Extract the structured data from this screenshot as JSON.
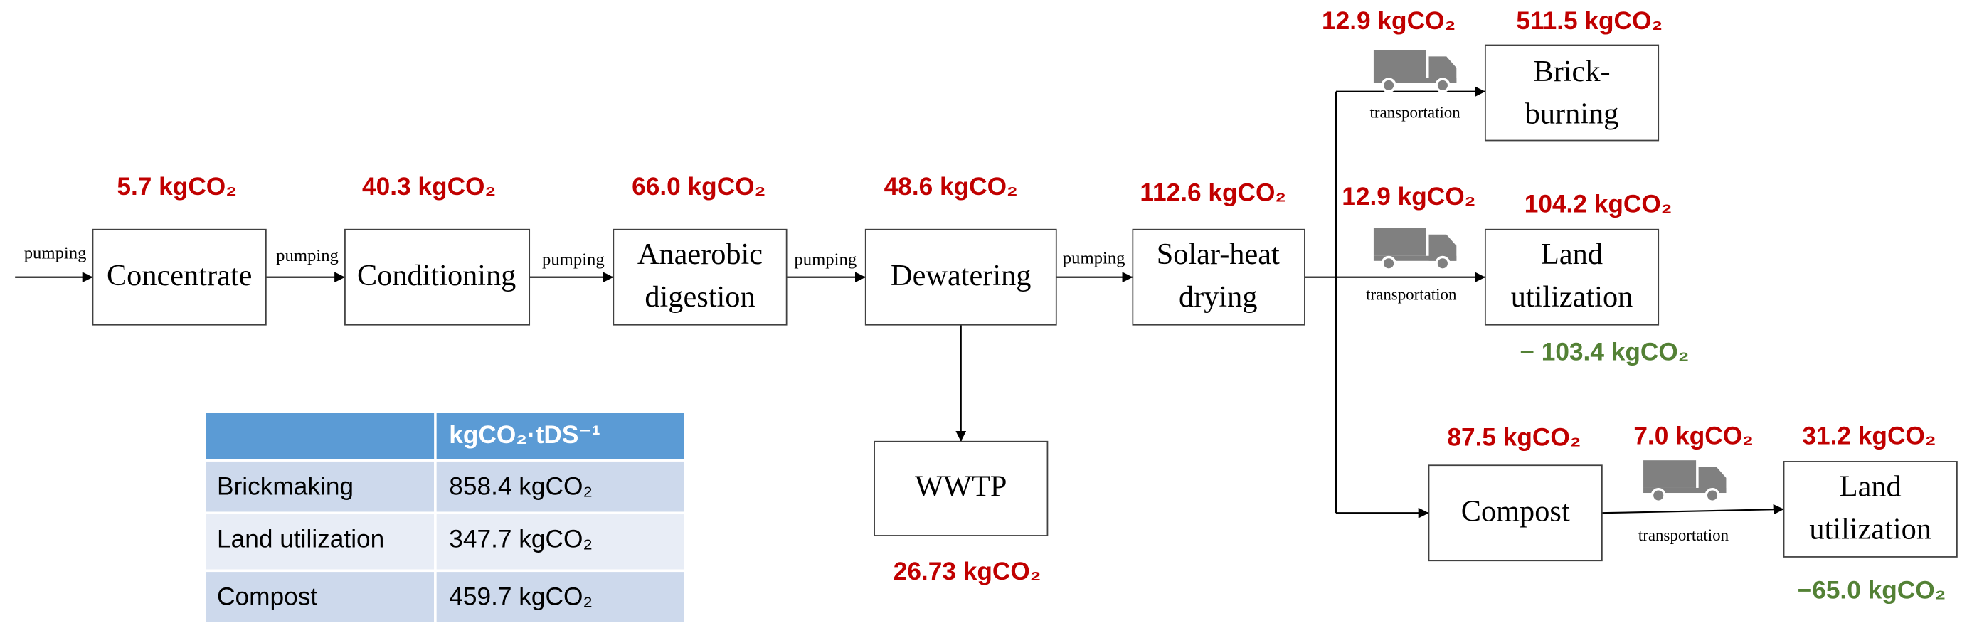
{
  "process": [
    {
      "label": [
        "Concentrate"
      ],
      "emission": "5.7 kgCO₂"
    },
    {
      "label": [
        "Conditioning"
      ],
      "emission": "40.3 kgCO₂"
    },
    {
      "label": [
        "Anaerobic",
        "digestion"
      ],
      "emission": "66.0 kgCO₂"
    },
    {
      "label": [
        "Dewatering"
      ],
      "emission": "48.6 kgCO₂"
    },
    {
      "label": [
        "Solar-heat",
        "drying"
      ],
      "emission": "112.6 kgCO₂"
    }
  ],
  "pumping_labels": [
    "pumping",
    "pumping",
    "pumping",
    "pumping",
    "pumping"
  ],
  "wwtp": {
    "label": [
      "WWTP"
    ],
    "emission": "26.73 kgCO₂"
  },
  "routes": [
    {
      "transport_emission": "12.9 kgCO₂",
      "transport_label": "transportation",
      "destination": {
        "label": [
          "Brick-",
          "burning"
        ],
        "emission": "511.5 kgCO₂"
      }
    },
    {
      "transport_emission": "12.9 kgCO₂",
      "transport_label": "transportation",
      "destination": {
        "label": [
          "Land",
          "utilization"
        ],
        "emission": "104.2 kgCO₂",
        "offset": "− 103.4 kgCO₂"
      }
    },
    {
      "compost": {
        "label": [
          "Compost"
        ],
        "emission": "87.5 kgCO₂"
      },
      "transport_emission": "7.0 kgCO₂",
      "transport_label": "transportation",
      "destination": {
        "label": [
          "Land",
          "utilization"
        ],
        "emission": "31.2 kgCO₂",
        "offset": "−65.0 kgCO₂"
      }
    }
  ],
  "table": {
    "column_header": "kgCO₂·tDS⁻¹",
    "rows": [
      [
        "Brickmaking",
        "858.4 kgCO₂"
      ],
      [
        "Land utilization",
        "347.7 kgCO₂"
      ],
      [
        "Compost",
        "459.7 kgCO₂"
      ]
    ]
  }
}
